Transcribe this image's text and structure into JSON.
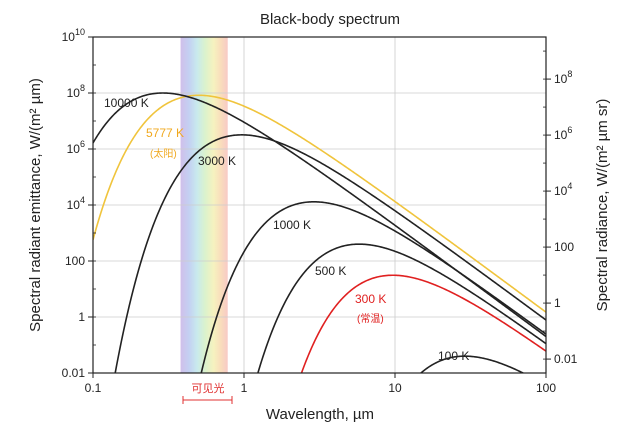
{
  "chart_data": {
    "type": "line",
    "title": "Black-body spectrum",
    "xlabel": "Wavelength, µm",
    "ylabel_left": "Spectral radiant emittance, W/(m² µm)",
    "ylabel_right": "Spectral radiance, W/(m² µm sr)",
    "x_scale": "log",
    "y_scale": "log",
    "xlim": [
      0.1,
      100
    ],
    "ylim": [
      0.01,
      10000000000
    ],
    "x_ticks": [
      {
        "value": 0.1,
        "label": "0.1"
      },
      {
        "value": 1,
        "label": "1"
      },
      {
        "value": 10,
        "label": "10"
      },
      {
        "value": 100,
        "label": "100"
      }
    ],
    "y_ticks_left": [
      {
        "value": 0.01,
        "label": "0.01"
      },
      {
        "value": 1,
        "label": "1"
      },
      {
        "value": 100,
        "label": "100"
      },
      {
        "value": 10000,
        "base": "10",
        "exp": "4"
      },
      {
        "value": 1000000,
        "base": "10",
        "exp": "6"
      },
      {
        "value": 100000000,
        "base": "10",
        "exp": "8"
      },
      {
        "value": 10000000000,
        "base": "10",
        "exp": "10"
      }
    ],
    "y_ticks_right": [
      {
        "value": 0.01,
        "label": "0.01"
      },
      {
        "value": 1,
        "label": "1"
      },
      {
        "value": 100,
        "label": "100"
      },
      {
        "value": 10000,
        "base": "10",
        "exp": "4"
      },
      {
        "value": 1000000,
        "base": "10",
        "exp": "6"
      },
      {
        "value": 100000000,
        "base": "10",
        "exp": "8"
      }
    ],
    "right_axis_scale_factor": 3.14159,
    "grid": "major",
    "visible_band": {
      "range_um": [
        0.38,
        0.78
      ],
      "label": "可见光"
    },
    "series": [
      {
        "name": "10000 K",
        "temperature_K": 10000,
        "color": "#222222",
        "points": [
          [
            0.1,
            16000000
          ],
          [
            0.29,
            100000000
          ],
          [
            1,
            25000000
          ],
          [
            10,
            12000
          ],
          [
            100,
            1.4
          ]
        ]
      },
      {
        "name": "5777 K",
        "note": "(太阳)",
        "temperature_K": 5777,
        "color": "#f0c43c",
        "points": [
          [
            0.1,
            2000
          ],
          [
            0.5,
            83000000
          ],
          [
            1,
            47000000
          ],
          [
            10,
            7000
          ],
          [
            100,
            0.8
          ]
        ]
      },
      {
        "name": "3000 K",
        "temperature_K": 3000,
        "color": "#222222",
        "points": [
          [
            0.2,
            7
          ],
          [
            0.97,
            3200000
          ],
          [
            3,
            600000
          ],
          [
            10,
            3400
          ],
          [
            100,
            0.4
          ]
        ]
      },
      {
        "name": "1000 K",
        "temperature_K": 1000,
        "color": "#222222",
        "points": [
          [
            0.55,
            0.03
          ],
          [
            2.9,
            13000
          ],
          [
            10,
            2500
          ],
          [
            100,
            0.12
          ]
        ]
      },
      {
        "name": "500 K",
        "temperature_K": 500,
        "color": "#222222",
        "points": [
          [
            1.3,
            0.01
          ],
          [
            5.8,
            400
          ],
          [
            20,
            60
          ],
          [
            100,
            0.05
          ]
        ]
      },
      {
        "name": "300 K",
        "note": "(常温)",
        "temperature_K": 300,
        "color": "#e02020",
        "points": [
          [
            2.5,
            0.01
          ],
          [
            9.7,
            31
          ],
          [
            30,
            5
          ],
          [
            100,
            0.03
          ]
        ]
      },
      {
        "name": "100 K",
        "temperature_K": 100,
        "color": "#222222",
        "points": [
          [
            11,
            0.01
          ],
          [
            29,
            0.04
          ],
          [
            100,
            0.008
          ]
        ]
      }
    ]
  }
}
